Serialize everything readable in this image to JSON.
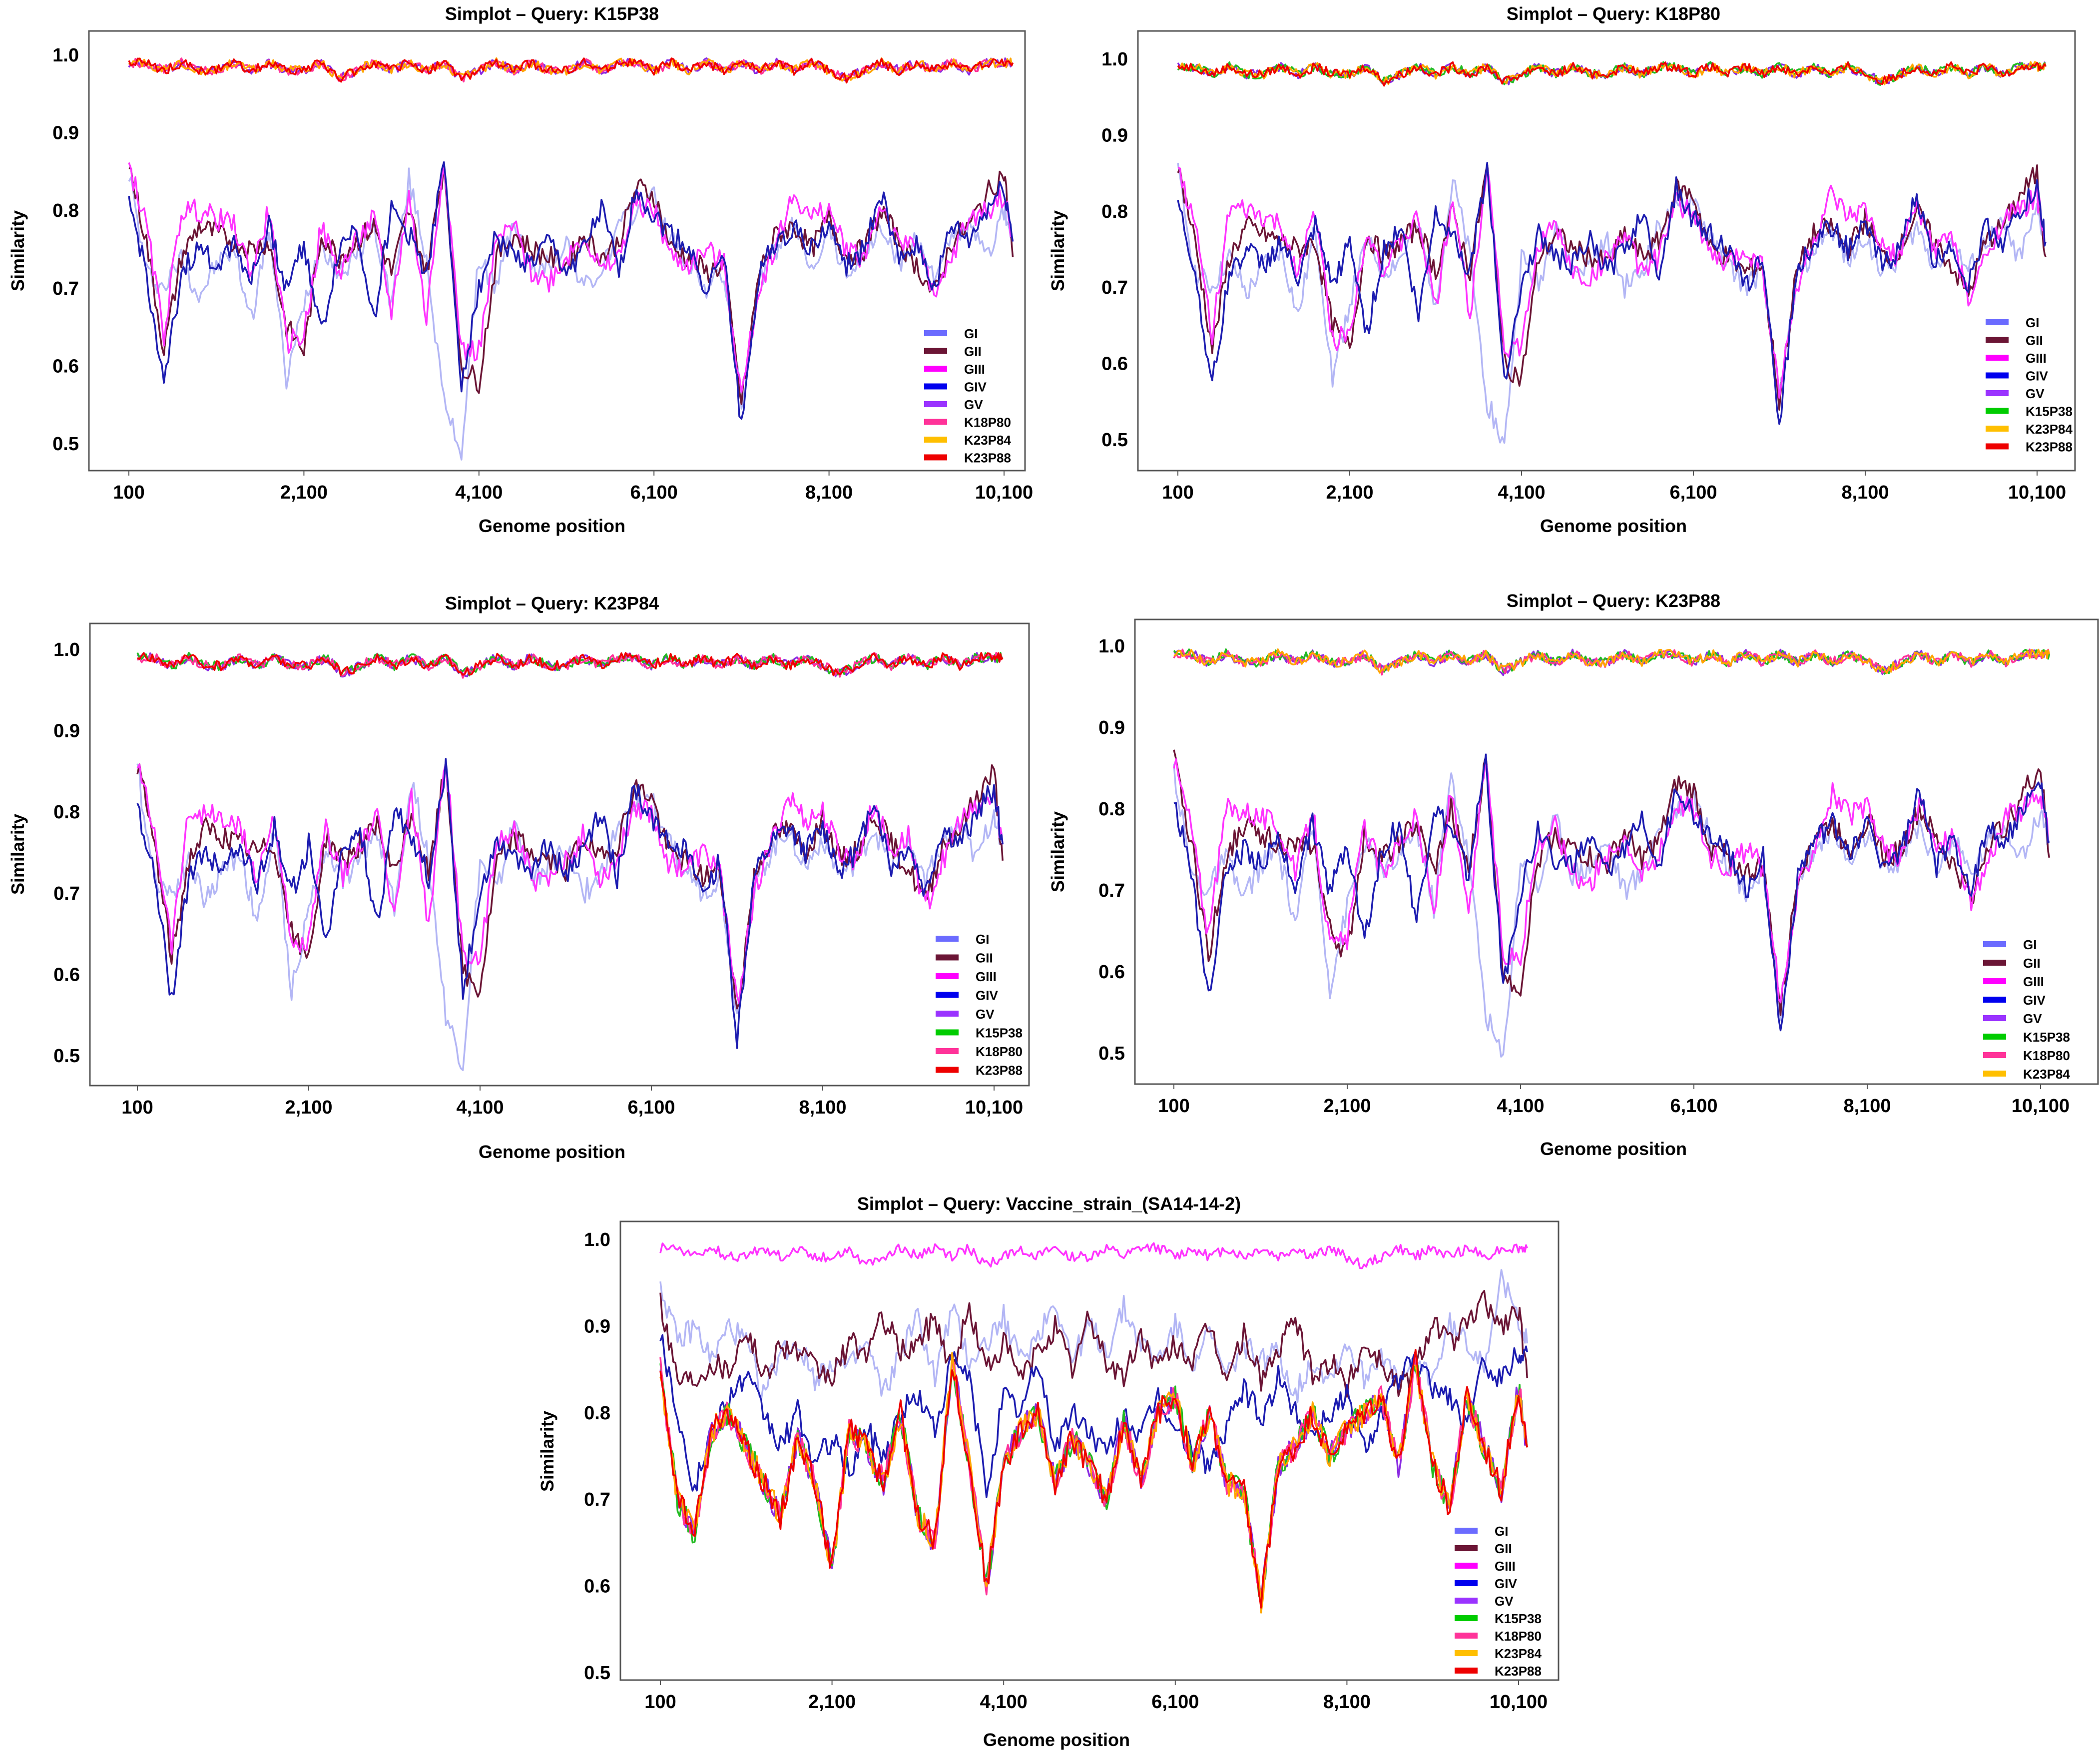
{
  "figure": {
    "description_panels": 5
  },
  "chart_data": [
    {
      "type": "line",
      "title": "Simplot – Query: K15P38",
      "xlabel": "Genome position",
      "ylabel": "Similarity",
      "xlim": [
        100,
        10300
      ],
      "ylim": [
        0.46,
        1.04
      ],
      "x_ticks": [
        100,
        2100,
        4100,
        6100,
        8100,
        10100
      ],
      "x_tick_labels": [
        "100",
        "2,100",
        "4,100",
        "6,100",
        "8,100",
        "10,100"
      ],
      "y_ticks": [
        0.5,
        0.6,
        0.7,
        0.8,
        0.9,
        1.0
      ],
      "y_tick_labels": [
        "0.5",
        "0.6",
        "0.7",
        "0.8",
        "0.9",
        "1.0"
      ],
      "legend_position": "bottom-right",
      "series": [
        {
          "name": "GI",
          "color": "#6b6bff",
          "line_color": "#b3b6f5",
          "profile": "GI"
        },
        {
          "name": "GII",
          "color": "#6b1535",
          "line_color": "#6b1535",
          "profile": "GII"
        },
        {
          "name": "GIII",
          "color": "#ff00ff",
          "line_color": "#ff33ff",
          "profile": "GIII"
        },
        {
          "name": "GIV",
          "color": "#0000ee",
          "line_color": "#1c1cb0",
          "profile": "GIV"
        },
        {
          "name": "GV",
          "color": "#9a33ff",
          "line_color": "#8a2be2",
          "profile": "HIGH"
        },
        {
          "name": "K18P80",
          "color": "#ff3399",
          "line_color": "#ff3399",
          "profile": "HIGH"
        },
        {
          "name": "K23P84",
          "color": "#ffbf00",
          "line_color": "#ffa500",
          "profile": "HIGH"
        },
        {
          "name": "K23P88",
          "color": "#ee0000",
          "line_color": "#ee0000",
          "profile": "HIGH"
        }
      ]
    },
    {
      "type": "line",
      "title": "Simplot – Query: K18P80",
      "xlabel": "Genome position",
      "ylabel": "Similarity",
      "xlim": [
        100,
        10300
      ],
      "ylim": [
        0.46,
        1.04
      ],
      "x_ticks": [
        100,
        2100,
        4100,
        6100,
        8100,
        10100
      ],
      "x_tick_labels": [
        "100",
        "2,100",
        "4,100",
        "6,100",
        "8,100",
        "10,100"
      ],
      "y_ticks": [
        0.5,
        0.6,
        0.7,
        0.8,
        0.9,
        1.0
      ],
      "y_tick_labels": [
        "0.5",
        "0.6",
        "0.7",
        "0.8",
        "0.9",
        "1.0"
      ],
      "legend_position": "bottom-right",
      "series": [
        {
          "name": "GI",
          "color": "#6b6bff",
          "line_color": "#b3b6f5",
          "profile": "GI"
        },
        {
          "name": "GII",
          "color": "#6b1535",
          "line_color": "#6b1535",
          "profile": "GII"
        },
        {
          "name": "GIII",
          "color": "#ff00ff",
          "line_color": "#ff33ff",
          "profile": "GIII"
        },
        {
          "name": "GIV",
          "color": "#0000ee",
          "line_color": "#1c1cb0",
          "profile": "GIV"
        },
        {
          "name": "GV",
          "color": "#9a33ff",
          "line_color": "#8a2be2",
          "profile": "HIGH"
        },
        {
          "name": "K15P38",
          "color": "#00cc00",
          "line_color": "#22bb22",
          "profile": "HIGH"
        },
        {
          "name": "K23P84",
          "color": "#ffbf00",
          "line_color": "#ffa500",
          "profile": "HIGH"
        },
        {
          "name": "K23P88",
          "color": "#ee0000",
          "line_color": "#ee0000",
          "profile": "HIGH"
        }
      ]
    },
    {
      "type": "line",
      "title": "Simplot – Query: K23P84",
      "xlabel": "Genome position",
      "ylabel": "Similarity",
      "xlim": [
        100,
        10300
      ],
      "ylim": [
        0.46,
        1.04
      ],
      "x_ticks": [
        100,
        2100,
        4100,
        6100,
        8100,
        10100
      ],
      "x_tick_labels": [
        "100",
        "2,100",
        "4,100",
        "6,100",
        "8,100",
        "10,100"
      ],
      "y_ticks": [
        0.5,
        0.6,
        0.7,
        0.8,
        0.9,
        1.0
      ],
      "y_tick_labels": [
        "0.5",
        "0.6",
        "0.7",
        "0.8",
        "0.9",
        "1.0"
      ],
      "legend_position": "bottom-right",
      "series": [
        {
          "name": "GI",
          "color": "#6b6bff",
          "line_color": "#b3b6f5",
          "profile": "GI"
        },
        {
          "name": "GII",
          "color": "#6b1535",
          "line_color": "#6b1535",
          "profile": "GII"
        },
        {
          "name": "GIII",
          "color": "#ff00ff",
          "line_color": "#ff33ff",
          "profile": "GIII"
        },
        {
          "name": "GIV",
          "color": "#0000ee",
          "line_color": "#1c1cb0",
          "profile": "GIV"
        },
        {
          "name": "GV",
          "color": "#9a33ff",
          "line_color": "#8a2be2",
          "profile": "HIGH"
        },
        {
          "name": "K15P38",
          "color": "#00cc00",
          "line_color": "#22bb22",
          "profile": "HIGH"
        },
        {
          "name": "K18P80",
          "color": "#ff3399",
          "line_color": "#ff3399",
          "profile": "HIGH"
        },
        {
          "name": "K23P88",
          "color": "#ee0000",
          "line_color": "#ee0000",
          "profile": "HIGH"
        }
      ]
    },
    {
      "type": "line",
      "title": "Simplot – Query: K23P88",
      "xlabel": "Genome position",
      "ylabel": "Similarity",
      "xlim": [
        100,
        10300
      ],
      "ylim": [
        0.46,
        1.04
      ],
      "x_ticks": [
        100,
        2100,
        4100,
        6100,
        8100,
        10100
      ],
      "x_tick_labels": [
        "100",
        "2,100",
        "4,100",
        "6,100",
        "8,100",
        "10,100"
      ],
      "y_ticks": [
        0.5,
        0.6,
        0.7,
        0.8,
        0.9,
        1.0
      ],
      "y_tick_labels": [
        "0.5",
        "0.6",
        "0.7",
        "0.8",
        "0.9",
        "1.0"
      ],
      "legend_position": "bottom-right",
      "series": [
        {
          "name": "GI",
          "color": "#6b6bff",
          "line_color": "#b3b6f5",
          "profile": "GI"
        },
        {
          "name": "GII",
          "color": "#6b1535",
          "line_color": "#6b1535",
          "profile": "GII"
        },
        {
          "name": "GIII",
          "color": "#ff00ff",
          "line_color": "#ff33ff",
          "profile": "GIII"
        },
        {
          "name": "GIV",
          "color": "#0000ee",
          "line_color": "#1c1cb0",
          "profile": "GIV"
        },
        {
          "name": "GV",
          "color": "#9a33ff",
          "line_color": "#8a2be2",
          "profile": "HIGH"
        },
        {
          "name": "K15P38",
          "color": "#00cc00",
          "line_color": "#22bb22",
          "profile": "HIGH"
        },
        {
          "name": "K18P80",
          "color": "#ff3399",
          "line_color": "#ff3399",
          "profile": "HIGH"
        },
        {
          "name": "K23P84",
          "color": "#ffbf00",
          "line_color": "#ffa500",
          "profile": "HIGH"
        }
      ]
    },
    {
      "type": "line",
      "title": "Simplot – Query: Vaccine_strain_(SA14-14-2)",
      "xlabel": "Genome position",
      "ylabel": "Similarity",
      "xlim": [
        100,
        10300
      ],
      "ylim": [
        0.5,
        1.05
      ],
      "x_ticks": [
        100,
        2100,
        4100,
        6100,
        8100,
        10100
      ],
      "x_tick_labels": [
        "100",
        "2,100",
        "4,100",
        "6,100",
        "8,100",
        "10,100"
      ],
      "y_ticks": [
        0.5,
        0.6,
        0.7,
        0.8,
        0.9,
        1.0
      ],
      "y_tick_labels": [
        "0.5",
        "0.6",
        "0.7",
        "0.8",
        "0.9",
        "1.0"
      ],
      "legend_position": "bottom-right",
      "series": [
        {
          "name": "GI",
          "color": "#6b6bff",
          "line_color": "#b3b6f5",
          "profile": "VGI"
        },
        {
          "name": "GII",
          "color": "#6b1535",
          "line_color": "#6b1535",
          "profile": "VGII"
        },
        {
          "name": "GIII",
          "color": "#ff00ff",
          "line_color": "#ff33ff",
          "profile": "HIGH"
        },
        {
          "name": "GIV",
          "color": "#0000ee",
          "line_color": "#1c1cb0",
          "profile": "VGIV"
        },
        {
          "name": "GV",
          "color": "#9a33ff",
          "line_color": "#8a2be2",
          "profile": "VLOW"
        },
        {
          "name": "K15P38",
          "color": "#00cc00",
          "line_color": "#22bb22",
          "profile": "VLOW"
        },
        {
          "name": "K18P80",
          "color": "#ff3399",
          "line_color": "#ff3399",
          "profile": "VLOW"
        },
        {
          "name": "K23P84",
          "color": "#ffbf00",
          "line_color": "#ffa500",
          "profile": "VLOW"
        },
        {
          "name": "K23P88",
          "color": "#ee0000",
          "line_color": "#ee0000",
          "profile": "VLOW"
        }
      ]
    }
  ],
  "profiles": {
    "x": [
      100,
      300,
      500,
      700,
      900,
      1100,
      1300,
      1500,
      1700,
      1900,
      2100,
      2300,
      2500,
      2700,
      2900,
      3100,
      3300,
      3500,
      3700,
      3900,
      4100,
      4300,
      4500,
      4700,
      4900,
      5100,
      5300,
      5500,
      5700,
      5900,
      6100,
      6300,
      6500,
      6700,
      6900,
      7100,
      7300,
      7500,
      7700,
      7900,
      8100,
      8300,
      8500,
      8700,
      8900,
      9100,
      9300,
      9500,
      9700,
      9900,
      10100,
      10200
    ],
    "GI": [
      0.85,
      0.72,
      0.7,
      0.74,
      0.69,
      0.73,
      0.75,
      0.66,
      0.78,
      0.58,
      0.68,
      0.76,
      0.72,
      0.74,
      0.78,
      0.68,
      0.84,
      0.74,
      0.55,
      0.49,
      0.74,
      0.7,
      0.79,
      0.72,
      0.73,
      0.76,
      0.7,
      0.72,
      0.78,
      0.8,
      0.82,
      0.76,
      0.73,
      0.7,
      0.72,
      0.55,
      0.71,
      0.75,
      0.78,
      0.73,
      0.77,
      0.72,
      0.74,
      0.78,
      0.73,
      0.76,
      0.72,
      0.76,
      0.78,
      0.74,
      0.8,
      0.76
    ],
    "GII": [
      0.86,
      0.76,
      0.62,
      0.74,
      0.78,
      0.77,
      0.76,
      0.75,
      0.76,
      0.65,
      0.62,
      0.77,
      0.74,
      0.76,
      0.78,
      0.72,
      0.8,
      0.72,
      0.86,
      0.6,
      0.58,
      0.74,
      0.77,
      0.75,
      0.74,
      0.73,
      0.77,
      0.74,
      0.76,
      0.83,
      0.82,
      0.75,
      0.74,
      0.72,
      0.73,
      0.55,
      0.72,
      0.77,
      0.78,
      0.75,
      0.79,
      0.74,
      0.75,
      0.8,
      0.76,
      0.73,
      0.69,
      0.76,
      0.78,
      0.82,
      0.85,
      0.74
    ],
    "GIII": [
      0.86,
      0.78,
      0.64,
      0.8,
      0.8,
      0.79,
      0.78,
      0.72,
      0.8,
      0.63,
      0.64,
      0.78,
      0.72,
      0.76,
      0.79,
      0.67,
      0.82,
      0.66,
      0.87,
      0.62,
      0.62,
      0.76,
      0.78,
      0.72,
      0.71,
      0.74,
      0.77,
      0.72,
      0.74,
      0.81,
      0.8,
      0.74,
      0.73,
      0.75,
      0.73,
      0.56,
      0.7,
      0.76,
      0.82,
      0.79,
      0.8,
      0.75,
      0.74,
      0.81,
      0.75,
      0.77,
      0.68,
      0.74,
      0.79,
      0.8,
      0.82,
      0.76
    ],
    "GIV": [
      0.81,
      0.72,
      0.57,
      0.72,
      0.75,
      0.73,
      0.76,
      0.71,
      0.78,
      0.7,
      0.76,
      0.64,
      0.75,
      0.78,
      0.66,
      0.8,
      0.77,
      0.72,
      0.86,
      0.58,
      0.7,
      0.77,
      0.74,
      0.73,
      0.76,
      0.72,
      0.75,
      0.8,
      0.72,
      0.83,
      0.79,
      0.77,
      0.75,
      0.7,
      0.74,
      0.52,
      0.72,
      0.76,
      0.78,
      0.75,
      0.78,
      0.73,
      0.75,
      0.82,
      0.73,
      0.76,
      0.7,
      0.78,
      0.76,
      0.8,
      0.83,
      0.76
    ],
    "HIGH": [
      0.99,
      0.99,
      0.98,
      0.99,
      0.98,
      0.98,
      0.99,
      0.98,
      0.99,
      0.98,
      0.98,
      0.99,
      0.97,
      0.98,
      0.99,
      0.98,
      0.99,
      0.98,
      0.99,
      0.97,
      0.98,
      0.99,
      0.98,
      0.99,
      0.98,
      0.98,
      0.99,
      0.98,
      0.99,
      0.99,
      0.98,
      0.99,
      0.98,
      0.99,
      0.98,
      0.99,
      0.98,
      0.99,
      0.98,
      0.99,
      0.98,
      0.97,
      0.98,
      0.99,
      0.98,
      0.99,
      0.98,
      0.99,
      0.98,
      0.99,
      0.99,
      0.99
    ],
    "VGI": [
      0.95,
      0.88,
      0.9,
      0.86,
      0.9,
      0.88,
      0.82,
      0.87,
      0.88,
      0.84,
      0.86,
      0.85,
      0.88,
      0.82,
      0.87,
      0.91,
      0.84,
      0.92,
      0.86,
      0.88,
      0.91,
      0.86,
      0.89,
      0.93,
      0.86,
      0.9,
      0.87,
      0.92,
      0.88,
      0.86,
      0.9,
      0.86,
      0.89,
      0.84,
      0.88,
      0.86,
      0.87,
      0.82,
      0.86,
      0.84,
      0.88,
      0.84,
      0.87,
      0.83,
      0.86,
      0.84,
      0.9,
      0.88,
      0.86,
      0.95,
      0.91,
      0.88
    ],
    "VGII": [
      0.93,
      0.84,
      0.84,
      0.86,
      0.85,
      0.9,
      0.84,
      0.88,
      0.87,
      0.85,
      0.84,
      0.88,
      0.87,
      0.91,
      0.87,
      0.88,
      0.91,
      0.85,
      0.92,
      0.85,
      0.88,
      0.84,
      0.87,
      0.9,
      0.85,
      0.91,
      0.86,
      0.84,
      0.89,
      0.85,
      0.88,
      0.86,
      0.9,
      0.84,
      0.89,
      0.84,
      0.87,
      0.91,
      0.84,
      0.86,
      0.83,
      0.88,
      0.86,
      0.83,
      0.85,
      0.91,
      0.88,
      0.9,
      0.93,
      0.9,
      0.92,
      0.84
    ],
    "VGIV": [
      0.89,
      0.8,
      0.71,
      0.78,
      0.82,
      0.84,
      0.8,
      0.76,
      0.8,
      0.74,
      0.77,
      0.73,
      0.78,
      0.75,
      0.8,
      0.82,
      0.78,
      0.86,
      0.84,
      0.71,
      0.82,
      0.8,
      0.86,
      0.76,
      0.8,
      0.78,
      0.75,
      0.8,
      0.77,
      0.82,
      0.78,
      0.76,
      0.74,
      0.78,
      0.83,
      0.79,
      0.84,
      0.8,
      0.78,
      0.8,
      0.82,
      0.76,
      0.8,
      0.84,
      0.86,
      0.83,
      0.82,
      0.78,
      0.86,
      0.84,
      0.87,
      0.87
    ],
    "VLOW": [
      0.85,
      0.7,
      0.66,
      0.78,
      0.8,
      0.76,
      0.72,
      0.68,
      0.77,
      0.72,
      0.62,
      0.78,
      0.76,
      0.72,
      0.8,
      0.68,
      0.65,
      0.86,
      0.74,
      0.6,
      0.74,
      0.78,
      0.8,
      0.72,
      0.77,
      0.74,
      0.7,
      0.79,
      0.72,
      0.8,
      0.82,
      0.74,
      0.8,
      0.72,
      0.71,
      0.58,
      0.74,
      0.76,
      0.8,
      0.75,
      0.78,
      0.8,
      0.82,
      0.74,
      0.86,
      0.74,
      0.69,
      0.82,
      0.76,
      0.71,
      0.83,
      0.76
    ]
  }
}
